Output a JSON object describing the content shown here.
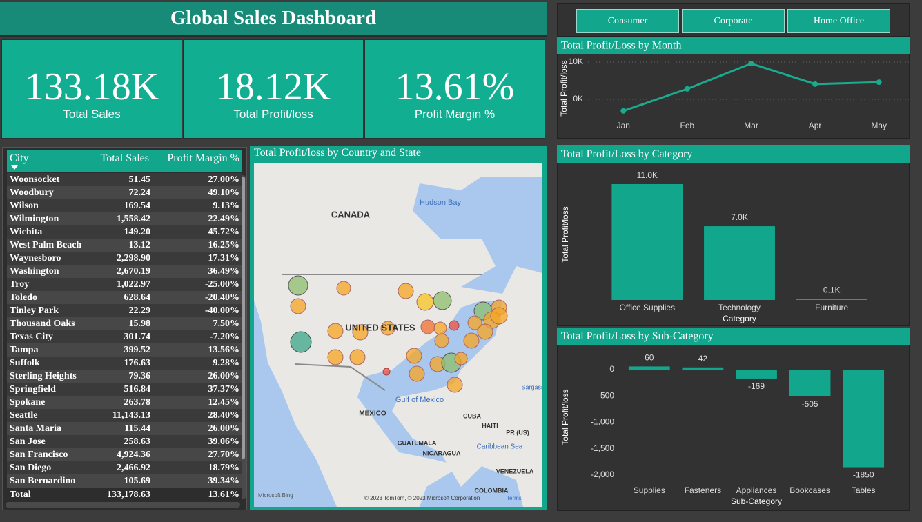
{
  "header": {
    "title": "Global Sales Dashboard"
  },
  "kpis": [
    {
      "value": "133.18K",
      "label": "Total Sales"
    },
    {
      "value": "18.12K",
      "label": "Total Profit/loss"
    },
    {
      "value": "13.61%",
      "label": "Profit Margin %"
    }
  ],
  "slicer": {
    "options": [
      "Consumer",
      "Corporate",
      "Home Office"
    ]
  },
  "table": {
    "columns": [
      "City",
      "Total Sales",
      "Profit Margin %"
    ],
    "rows": [
      [
        "Woonsocket",
        "51.45",
        "27.00%"
      ],
      [
        "Woodbury",
        "72.24",
        "49.10%"
      ],
      [
        "Wilson",
        "169.54",
        "9.13%"
      ],
      [
        "Wilmington",
        "1,558.42",
        "22.49%"
      ],
      [
        "Wichita",
        "149.20",
        "45.72%"
      ],
      [
        "West Palm Beach",
        "13.12",
        "16.25%"
      ],
      [
        "Waynesboro",
        "2,298.90",
        "17.31%"
      ],
      [
        "Washington",
        "2,670.19",
        "36.49%"
      ],
      [
        "Troy",
        "1,022.97",
        "-25.00%"
      ],
      [
        "Toledo",
        "628.64",
        "-20.40%"
      ],
      [
        "Tinley Park",
        "22.29",
        "-40.00%"
      ],
      [
        "Thousand Oaks",
        "15.98",
        "7.50%"
      ],
      [
        "Texas City",
        "301.74",
        "-7.20%"
      ],
      [
        "Tampa",
        "399.52",
        "13.56%"
      ],
      [
        "Suffolk",
        "176.63",
        "9.28%"
      ],
      [
        "Sterling Heights",
        "79.36",
        "26.00%"
      ],
      [
        "Springfield",
        "516.84",
        "37.37%"
      ],
      [
        "Spokane",
        "263.78",
        "12.45%"
      ],
      [
        "Seattle",
        "11,143.13",
        "28.40%"
      ],
      [
        "Santa Maria",
        "115.44",
        "26.00%"
      ],
      [
        "San Jose",
        "258.63",
        "39.06%"
      ],
      [
        "San Francisco",
        "4,924.36",
        "27.70%"
      ],
      [
        "San Diego",
        "2,466.92",
        "18.79%"
      ],
      [
        "San Bernardino",
        "105.69",
        "39.34%"
      ]
    ],
    "total": [
      "Total",
      "133,178.63",
      "13.61%"
    ]
  },
  "map": {
    "title": "Total Profit/loss by Country and State",
    "labels": [
      "CANADA",
      "Hudson Bay",
      "UNITED STATES",
      "MEXICO",
      "Gulf of Mexico",
      "CUBA",
      "HAITI",
      "PR (US)",
      "GUATEMALA",
      "NICARAGUA",
      "Caribbean Sea",
      "VENEZUELA",
      "COLOMBIA",
      "Sargass"
    ],
    "attribution": "© 2023 TomTom, © 2023 Microsoft Corporation",
    "terms": "Terms",
    "provider": "Microsoft Bing"
  },
  "chart_data": [
    {
      "type": "line",
      "title": "Total Profit/Loss by Month",
      "y_label": "Total Profit/loss",
      "categories": [
        "Jan",
        "Feb",
        "Mar",
        "Apr",
        "May"
      ],
      "values": [
        -3100,
        2800,
        9600,
        4100,
        4600
      ],
      "color": "#1aab8f",
      "ylim": [
        -4000,
        12000
      ],
      "yticks": [
        {
          "value": 0,
          "label": "0K"
        },
        {
          "value": 10000,
          "label": "10K"
        }
      ],
      "grid": true
    },
    {
      "type": "bar",
      "title": "Total Profit/Loss by Category",
      "y_label": "Total Profit/loss",
      "x_label": "Category",
      "categories": [
        "Office Supplies",
        "Technology",
        "Furniture"
      ],
      "values": [
        11000,
        7000,
        100
      ],
      "value_labels": [
        "11.0K",
        "7.0K",
        "0.1K"
      ],
      "color": "#12a68c",
      "ylim": [
        0,
        12000
      ],
      "yticks": [],
      "grid": false
    },
    {
      "type": "bar",
      "title": "Total Profit/Loss by Sub-Category",
      "y_label": "Total Profit/loss",
      "x_label": "Sub-Category",
      "categories": [
        "Supplies",
        "Fasteners",
        "Appliances",
        "Bookcases",
        "Tables"
      ],
      "values": [
        60,
        42,
        -169,
        -505,
        -1850
      ],
      "color": "#12a68c",
      "ylim": [
        -2100,
        400
      ],
      "yticks": [
        0,
        -500,
        {
          "value": -1000,
          "label": "-1,000"
        },
        {
          "value": -1500,
          "label": "-1,500"
        },
        {
          "value": -2000,
          "label": "-2,000"
        }
      ],
      "grid": false
    }
  ]
}
